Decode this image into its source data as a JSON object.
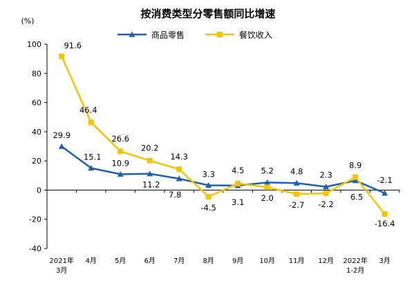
{
  "chart_data": {
    "type": "line",
    "title": "按消费类型分零售额同比增速",
    "unit_label": "(%)",
    "categories": [
      [
        "2021年",
        "3月"
      ],
      [
        "4月"
      ],
      [
        "5月"
      ],
      [
        "6月"
      ],
      [
        "7月"
      ],
      [
        "8月"
      ],
      [
        "9月"
      ],
      [
        "10月"
      ],
      [
        "11月"
      ],
      [
        "12月"
      ],
      [
        "2022年",
        "1-2月"
      ],
      [
        "3月"
      ]
    ],
    "series": [
      {
        "name": "商品零售",
        "color": "#1f5fad",
        "marker": "triangle",
        "values": [
          29.9,
          15.1,
          10.9,
          11.2,
          7.8,
          3.3,
          3.1,
          5.2,
          4.8,
          2.3,
          6.5,
          -2.1
        ],
        "labels": [
          "29.9",
          "15.1",
          "10.9",
          "11.2",
          "7.8",
          "3.3",
          "3.1",
          "5.2",
          "4.8",
          "2.3",
          "6.5",
          "-2.1"
        ]
      },
      {
        "name": "餐饮收入",
        "color": "#f5c400",
        "marker": "square",
        "values": [
          91.6,
          46.4,
          26.6,
          20.2,
          14.3,
          -4.5,
          4.5,
          2.0,
          -2.7,
          -2.2,
          8.9,
          -16.4
        ],
        "labels": [
          "91.6",
          "46.4",
          "26.6",
          "20.2",
          "14.3",
          "-4.5",
          "4.5",
          "2.0",
          "-2.7",
          "-2.2",
          "8.9",
          "-16.4"
        ]
      }
    ],
    "ylim": [
      -40,
      100
    ],
    "yticks": [
      "-40",
      "-20",
      "0",
      "20",
      "40",
      "60",
      "80",
      "100"
    ],
    "legend_position": "top-center",
    "grid": false
  }
}
